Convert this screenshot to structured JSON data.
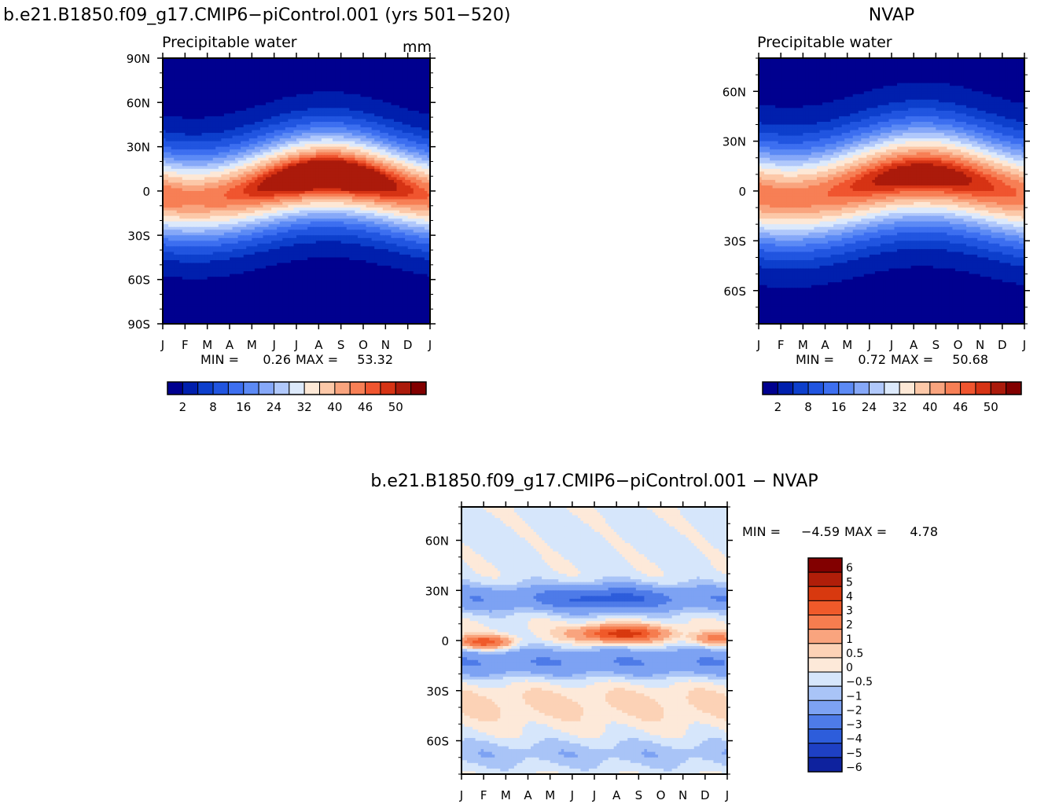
{
  "header": {
    "left_title": "b.e21.B1850.f09_g17.CMIP6−piControl.001 (yrs 501−520)",
    "right_title": "NVAP"
  },
  "months": [
    "J",
    "F",
    "M",
    "A",
    "M",
    "J",
    "J",
    "A",
    "S",
    "O",
    "N",
    "D",
    "J"
  ],
  "chart_data": [
    {
      "type": "heatmap",
      "subtitle": "Precipitable water",
      "units": "mm",
      "x": [
        "J",
        "F",
        "M",
        "A",
        "M",
        "J",
        "J",
        "A",
        "S",
        "O",
        "N",
        "D",
        "J"
      ],
      "ylim": [
        -90,
        90
      ],
      "yticks": [
        {
          "v": 90,
          "l": "90N"
        },
        {
          "v": 60,
          "l": "60N"
        },
        {
          "v": 30,
          "l": "30N"
        },
        {
          "v": 0,
          "l": "0"
        },
        {
          "v": -30,
          "l": "30S"
        },
        {
          "v": -60,
          "l": "60S"
        },
        {
          "v": -90,
          "l": "90S"
        }
      ],
      "min_label": "MIN =",
      "min_value": "0.26",
      "max_label": "MAX =",
      "max_value": "53.32",
      "field": {
        "base": 50.5,
        "amp": 6,
        "lat_peak": 3,
        "lat_amp": 8,
        "sigma": 28,
        "ph": 7.4
      },
      "colorbar": {
        "levels": [
          2,
          5,
          8,
          12,
          16,
          20,
          24,
          28,
          32,
          36,
          40,
          43,
          46,
          48,
          50
        ],
        "labels": [
          "2",
          "8",
          "16",
          "24",
          "32",
          "40",
          "46",
          "50"
        ]
      }
    },
    {
      "type": "heatmap",
      "subtitle": "Precipitable water",
      "units": "",
      "x": [
        "J",
        "F",
        "M",
        "A",
        "M",
        "J",
        "J",
        "A",
        "S",
        "O",
        "N",
        "D",
        "J"
      ],
      "ylim": [
        -80,
        80
      ],
      "yticks": [
        {
          "v": 60,
          "l": "60N"
        },
        {
          "v": 30,
          "l": "30N"
        },
        {
          "v": 0,
          "l": "0"
        },
        {
          "v": -30,
          "l": "30S"
        },
        {
          "v": -60,
          "l": "60S"
        }
      ],
      "min_label": "MIN =",
      "min_value": "0.72",
      "max_label": "MAX =",
      "max_value": "50.68",
      "field": {
        "base": 48.5,
        "amp": 4,
        "lat_peak": 3,
        "lat_amp": 7,
        "sigma": 28,
        "ph": 7.4
      },
      "colorbar": {
        "levels": [
          2,
          5,
          8,
          12,
          16,
          20,
          24,
          28,
          32,
          36,
          40,
          43,
          46,
          48,
          50
        ],
        "labels": [
          "2",
          "8",
          "16",
          "24",
          "32",
          "40",
          "46",
          "50"
        ]
      }
    },
    {
      "type": "heatmap",
      "title": "b.e21.B1850.f09_g17.CMIP6−piControl.001 − NVAP",
      "x": [
        "J",
        "F",
        "M",
        "A",
        "M",
        "J",
        "J",
        "A",
        "S",
        "O",
        "N",
        "D",
        "J"
      ],
      "ylim": [
        -80,
        80
      ],
      "yticks": [
        {
          "v": 60,
          "l": "60N"
        },
        {
          "v": 30,
          "l": "30N"
        },
        {
          "v": 0,
          "l": "0"
        },
        {
          "v": -30,
          "l": "30S"
        },
        {
          "v": -60,
          "l": "60S"
        }
      ],
      "min_label": "MIN =",
      "min_value": "−4.59",
      "max_label": "MAX =",
      "max_value": "4.78",
      "colorbar": {
        "labels": [
          "6",
          "5",
          "4",
          "3",
          "2",
          "1",
          "0.5",
          "0",
          "−0.5",
          "−1",
          "−2",
          "−3",
          "−4",
          "−5",
          "−6"
        ]
      }
    }
  ],
  "palette": [
    "#00008f",
    "#001fad",
    "#0d3fcc",
    "#2155e0",
    "#3d6ff0",
    "#5c8af5",
    "#86a8f8",
    "#b0c8fb",
    "#dce9fb",
    "#fde8d6",
    "#fcc8a8",
    "#f9a47e",
    "#f77f55",
    "#f0552f",
    "#d63314",
    "#ab1a0b",
    "#820000"
  ],
  "diff_palette": [
    "#820000",
    "#b01e09",
    "#d8390f",
    "#f05a2a",
    "#f67d4f",
    "#f9a47e",
    "#fcd2b6",
    "#fde9d9",
    "#d6e6fb",
    "#a9c4f7",
    "#7da2f3",
    "#4e7be8",
    "#2d5ddb",
    "#1e40c4",
    "#0e229e"
  ]
}
